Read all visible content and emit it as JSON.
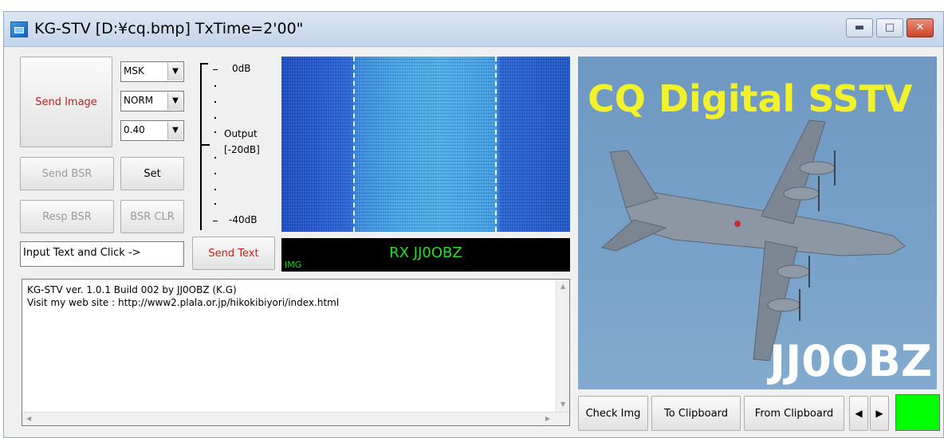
{
  "window": {
    "title": "KG-STV [D:¥cq.bmp] TxTime=2'00\"",
    "minimize_icon": "minimize-icon",
    "maximize_icon": "maximize-icon",
    "close_icon": "close-icon"
  },
  "controls": {
    "send_image": "Send Image",
    "send_bsr": "Send BSR",
    "set": "Set",
    "resp_bsr": "Resp BSR",
    "bsr_clr": "BSR CLR",
    "send_text": "Send Text",
    "text_input_value": "Input Text and Click ->"
  },
  "selects": {
    "mode": "MSK",
    "quality": "NORM",
    "value": "0.40"
  },
  "meter": {
    "top": "0dB",
    "output": "Output",
    "mid": "[-20dB]",
    "bottom": "-40dB"
  },
  "rx": {
    "tag": "IMG",
    "text": "RX JJ0OBZ"
  },
  "log": {
    "line1": "KG-STV ver. 1.0.1 Build 002  by JJ0OBZ (K.G)",
    "line2": "Visit my web site : http://www2.plala.or.jp/hikokibiyori/index.html"
  },
  "image": {
    "headline": "CQ Digital SSTV",
    "callsign": "JJ0OBZ"
  },
  "bottom_buttons": {
    "check_img": "Check Img",
    "to_clipboard": "To Clipboard",
    "from_clipboard": "From Clipboard",
    "prev": "◀",
    "next": "▶"
  },
  "colors": {
    "status_led": "#00ff00",
    "headline": "#f2f22a",
    "rx_text": "#20e020"
  }
}
